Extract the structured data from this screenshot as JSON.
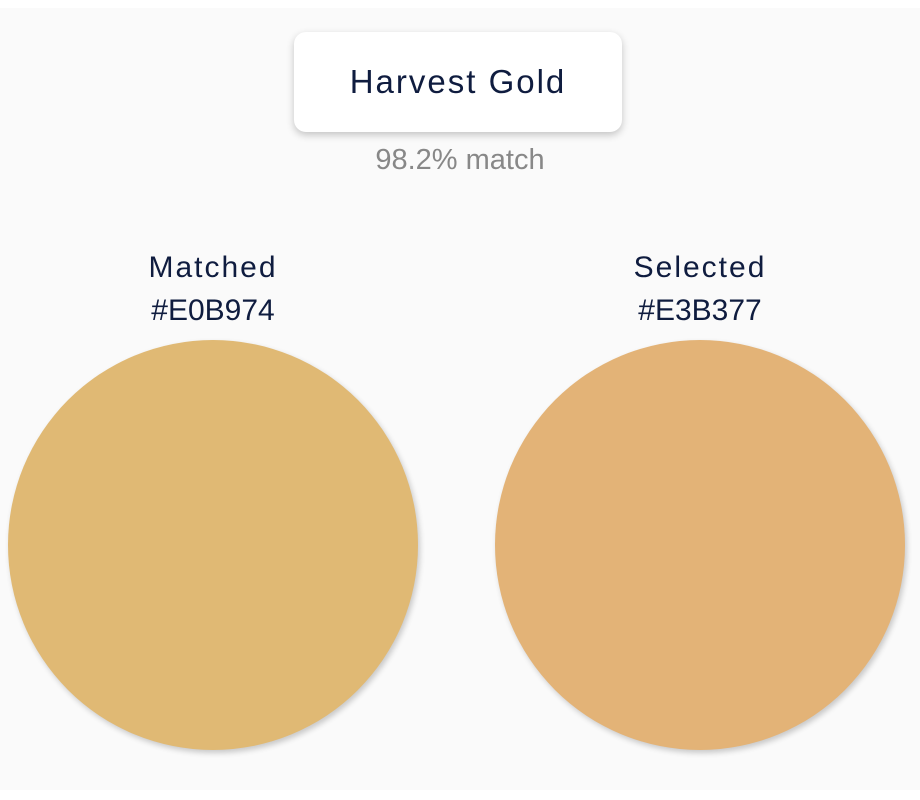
{
  "color_name": "Harvest Gold",
  "match_text": "98.2% match",
  "matched": {
    "label": "Matched",
    "hex": "#E0B974",
    "color": "#E0B974"
  },
  "selected": {
    "label": "Selected",
    "hex": "#E3B377",
    "color": "#E3B377"
  }
}
